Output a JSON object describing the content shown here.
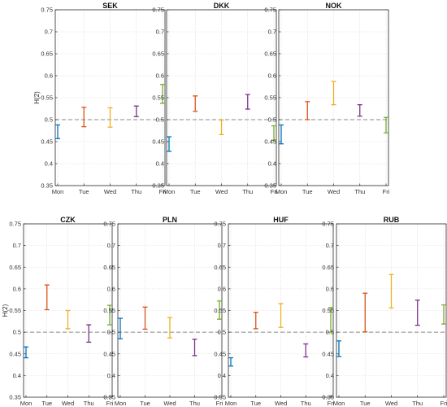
{
  "figure": {
    "ylabel": "H(2)",
    "reference_line": 0.5
  },
  "colors": {
    "Mon": "#0072BD",
    "Tue": "#D95319",
    "Wed": "#EDB120",
    "Thu": "#7E2F8E",
    "Fri": "#77AC30",
    "reference": "#888888",
    "grid": "#d9d9d9"
  },
  "chart_data": [
    {
      "type": "errorbar",
      "title": "SEK",
      "categories": [
        "Mon",
        "Tue",
        "Wed",
        "Thu",
        "Fri"
      ],
      "lower": [
        0.457,
        0.484,
        0.483,
        0.507,
        0.537
      ],
      "upper": [
        0.488,
        0.528,
        0.527,
        0.531,
        0.58
      ],
      "ylim": [
        0.35,
        0.75
      ],
      "yticks": [
        0.35,
        0.4,
        0.45,
        0.5,
        0.55,
        0.6,
        0.65,
        0.7,
        0.75
      ],
      "ylabel": "H(2)",
      "grid": true
    },
    {
      "type": "errorbar",
      "title": "DKK",
      "categories": [
        "Mon",
        "Tue",
        "Wed",
        "Thu",
        "Fri"
      ],
      "lower": [
        0.428,
        0.519,
        0.466,
        0.524,
        0.453
      ],
      "upper": [
        0.461,
        0.554,
        0.499,
        0.557,
        0.486
      ],
      "ylim": [
        0.35,
        0.75
      ],
      "yticks": [
        0.35,
        0.4,
        0.45,
        0.5,
        0.55,
        0.6,
        0.65,
        0.7,
        0.75
      ],
      "grid": true
    },
    {
      "type": "errorbar",
      "title": "NOK",
      "categories": [
        "Mon",
        "Tue",
        "Wed",
        "Thu",
        "Fri"
      ],
      "lower": [
        0.445,
        0.5,
        0.534,
        0.508,
        0.47
      ],
      "upper": [
        0.488,
        0.541,
        0.587,
        0.534,
        0.505
      ],
      "ylim": [
        0.35,
        0.75
      ],
      "yticks": [
        0.35,
        0.4,
        0.45,
        0.5,
        0.55,
        0.6,
        0.65,
        0.7,
        0.75
      ],
      "grid": true
    },
    {
      "type": "errorbar",
      "title": "CZK",
      "categories": [
        "Mon",
        "Tue",
        "Wed",
        "Thu",
        "Fri"
      ],
      "lower": [
        0.441,
        0.552,
        0.508,
        0.477,
        0.517
      ],
      "upper": [
        0.466,
        0.609,
        0.55,
        0.517,
        0.562
      ],
      "ylim": [
        0.35,
        0.75
      ],
      "yticks": [
        0.35,
        0.4,
        0.45,
        0.5,
        0.55,
        0.6,
        0.65,
        0.7,
        0.75
      ],
      "ylabel": "H(2)",
      "grid": true
    },
    {
      "type": "errorbar",
      "title": "PLN",
      "categories": [
        "Mon",
        "Tue",
        "Wed",
        "Thu",
        "Fri"
      ],
      "lower": [
        0.485,
        0.507,
        0.487,
        0.446,
        0.53
      ],
      "upper": [
        0.532,
        0.558,
        0.534,
        0.484,
        0.572
      ],
      "ylim": [
        0.35,
        0.75
      ],
      "yticks": [
        0.35,
        0.4,
        0.45,
        0.5,
        0.55,
        0.6,
        0.65,
        0.7,
        0.75
      ],
      "grid": true
    },
    {
      "type": "errorbar",
      "title": "HUF",
      "categories": [
        "Mon",
        "Tue",
        "Wed",
        "Thu",
        "Fri"
      ],
      "lower": [
        0.422,
        0.508,
        0.511,
        0.443,
        0.5
      ],
      "upper": [
        0.441,
        0.546,
        0.566,
        0.473,
        0.557
      ],
      "ylim": [
        0.35,
        0.75
      ],
      "yticks": [
        0.35,
        0.4,
        0.45,
        0.5,
        0.55,
        0.6,
        0.65,
        0.7,
        0.75
      ],
      "grid": true
    },
    {
      "type": "errorbar",
      "title": "RUB",
      "categories": [
        "Mon",
        "Tue",
        "Wed",
        "Thu",
        "Fri"
      ],
      "lower": [
        0.444,
        0.501,
        0.556,
        0.516,
        0.519
      ],
      "upper": [
        0.48,
        0.59,
        0.633,
        0.574,
        0.563
      ],
      "ylim": [
        0.35,
        0.75
      ],
      "yticks": [
        0.35,
        0.4,
        0.45,
        0.5,
        0.55,
        0.6,
        0.65,
        0.7,
        0.75
      ],
      "grid": true
    }
  ]
}
